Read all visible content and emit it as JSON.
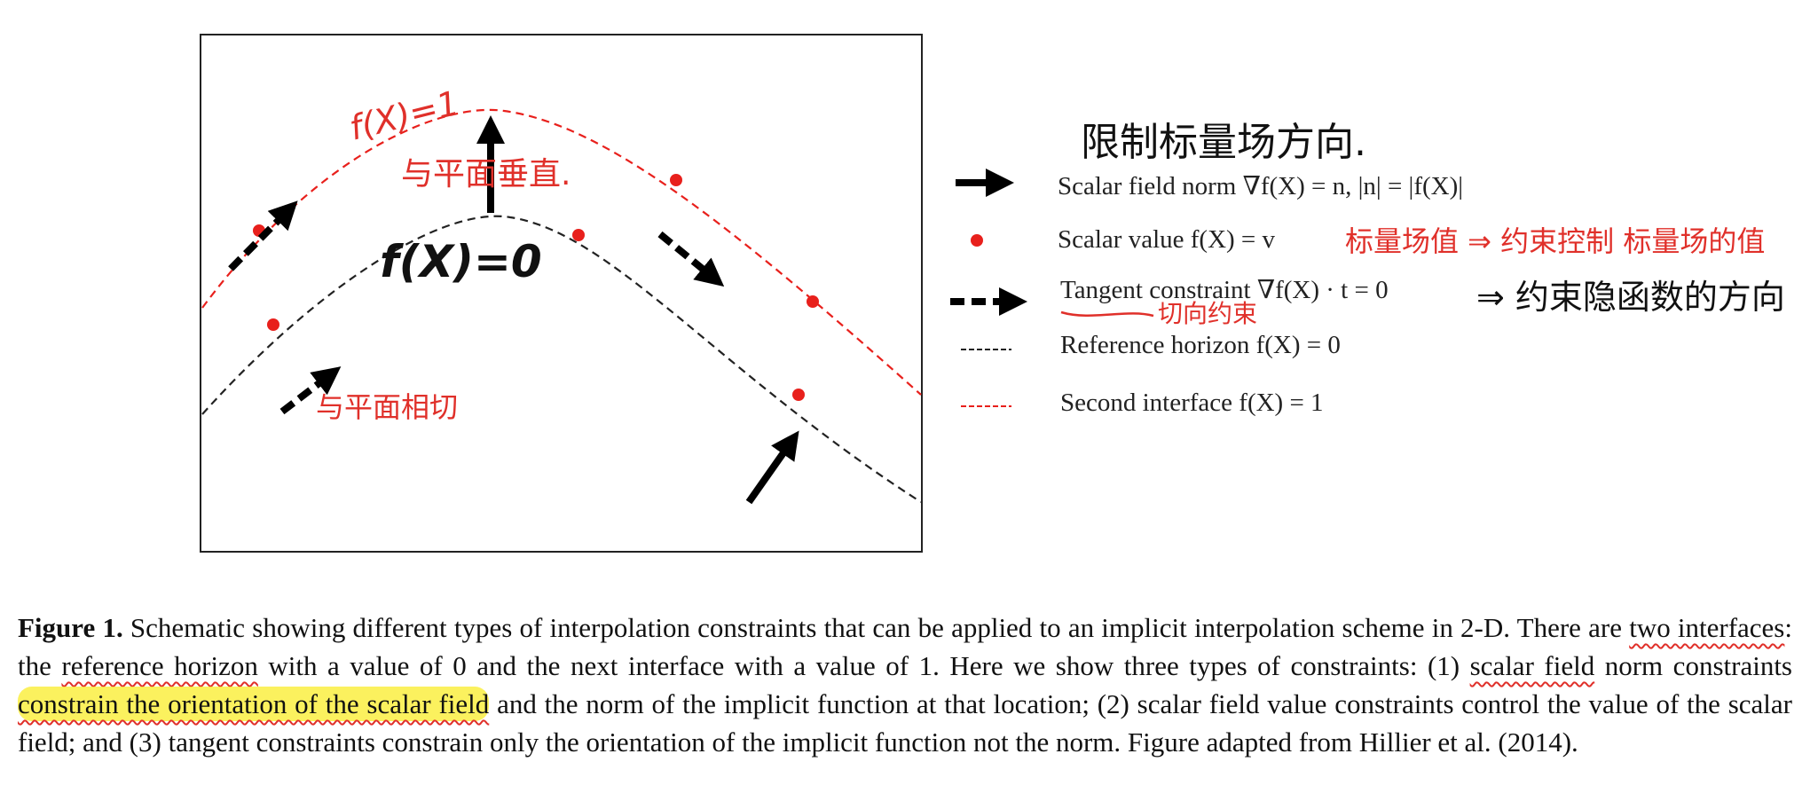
{
  "figure": {
    "legend": [
      {
        "marker": "solid-arrow",
        "label": "Scalar field norm ∇f(X) = n, |n| = |f(X)|"
      },
      {
        "marker": "red-dot",
        "label": "Scalar value f(X) = v"
      },
      {
        "marker": "dashed-arrow",
        "label": "Tangent constraint ∇f(X) · t = 0"
      },
      {
        "marker": "black-dashed-line",
        "label": "Reference horizon f(X) = 0"
      },
      {
        "marker": "red-dashed-line",
        "label": "Second interface f(X) = 1"
      }
    ],
    "plot_annotations": {
      "red_curve_label": "f(X)=1",
      "normal_note": "与平面垂直.",
      "black_curve_label": "f(X)=0",
      "tangent_note": "与平面相切"
    },
    "legend_annotations": {
      "norm_note": "限制标量场方向.",
      "value_note": "标量场值 ⇒ 约束控制 标量场的值",
      "tangent_note": "⇒ 约束隐函数的方向",
      "tangent_sub_note": "切向约束"
    },
    "colors": {
      "interface": "#e8201c",
      "reference": "#222222",
      "annotation": "#e0302a",
      "highlight": "#f7e92a"
    }
  },
  "caption": {
    "label": "Figure 1.",
    "part1": " Schematic showing different types of interpolation constraints that can be applied to an implicit interpolation scheme in 2-D. There are ",
    "two_interfaces": "two interfaces",
    "part2": ": the ",
    "reference_horizon": "reference horizon",
    "part3": " with a value of 0 and the next interface with a value of 1. Here we show three types of constraints: (1) ",
    "scalar_field": "scalar field",
    "part4": " norm constraints ",
    "highlight": "constrain the orientation of the scalar field",
    "part5": " and the norm of the implicit function at that location; (2) scalar field value constraints control the value of the scalar field; and (3) tangent constraints constrain only the orientation of the implicit function not the norm. Figure adapted from Hillier et al. (2014)."
  }
}
